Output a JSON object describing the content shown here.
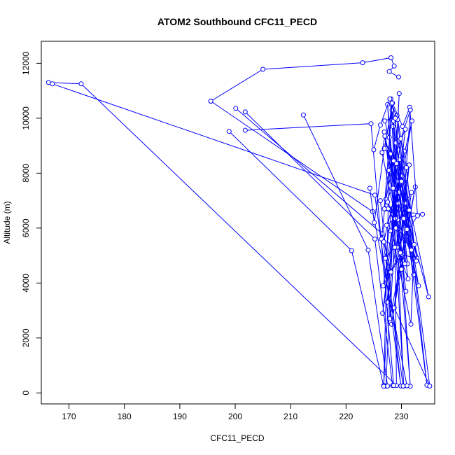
{
  "chart_data": {
    "type": "line",
    "title": "ATOM2 Southbound CFC11_PECD",
    "xlabel": "CFC11_PECD",
    "ylabel": "Altitude (m)",
    "xlim": [
      165,
      236
    ],
    "ylim": [
      -400,
      12800
    ],
    "x_ticks": [
      170,
      180,
      190,
      200,
      210,
      220,
      230
    ],
    "y_ticks": [
      0,
      2000,
      4000,
      6000,
      8000,
      10000,
      12000
    ],
    "marker": "open-circle",
    "grid": false,
    "legend": "none",
    "colors": {
      "series": "#0000ff",
      "axis": "#000000"
    },
    "series": [
      {
        "x": [
          227.2,
          229.6,
          226.8,
          228.1,
          230.4,
          227.5,
          231.6,
          228.3,
          234.6,
          229.2,
          227.0,
          232.8,
          228.5,
          231.1,
          226.9,
          230.0,
          227.8,
          232.2,
          229.0,
          233.1,
          227.3,
          230.8,
          228.0,
          234.9,
          229.7,
          227.4,
          231.4,
          228.7,
          235.1,
          230.2,
          226.6,
          229.4,
          227.9,
          232.5,
          228.2,
          231.8,
          230.6,
          227.1,
          233.8,
          229.3
        ],
        "y": [
          250,
          10900,
          270,
          10700,
          250,
          10500,
          240,
          10300,
          280,
          10100,
          9900,
          4900,
          9700,
          4700,
          9500,
          4500,
          9300,
          4300,
          9100,
          3900,
          8900,
          3700,
          8700,
          3500,
          8500,
          3300,
          8300,
          3100,
          250,
          7900,
          2900,
          7700,
          2700,
          7500,
          2500,
          7300,
          6900,
          6700,
          6500,
          6300
        ]
      },
      {
        "x": [
          166.3,
          172.2,
          229.1,
          228.6
        ],
        "y": [
          11300,
          11250,
          270,
          9900
        ]
      },
      {
        "x": [
          167.0,
          225.2,
          229.9,
          226.2
        ],
        "y": [
          11250,
          7200,
          250,
          7000
        ]
      },
      {
        "x": [
          195.6,
          205.0,
          223.0,
          228.1,
          228.7,
          227.8,
          229.5
        ],
        "y": [
          10620,
          11780,
          12020,
          12200,
          11900,
          11700,
          11500
        ]
      },
      {
        "x": [
          195.6,
          224.8,
          231.0
        ],
        "y": [
          10620,
          6600,
          260
        ]
      },
      {
        "x": [
          200.1,
          226.5,
          230.3
        ],
        "y": [
          10360,
          5800,
          250
        ]
      },
      {
        "x": [
          201.8,
          225.2,
          228.4
        ],
        "y": [
          10230,
          5600,
          270
        ]
      },
      {
        "x": [
          198.9,
          221.0,
          226.8
        ],
        "y": [
          9520,
          5180,
          240
        ]
      },
      {
        "x": [
          201.8,
          224.5,
          228.6
        ],
        "y": [
          9560,
          9800,
          270
        ]
      },
      {
        "x": [
          212.3,
          224.0,
          227.5
        ],
        "y": [
          10120,
          5200,
          250
        ]
      },
      {
        "x": [
          224.3,
          225.1,
          226.9,
          228.4,
          230.2,
          231.5,
          232.9,
          229.2,
          226.4,
          227.7,
          230.7,
          228.9,
          227.3,
          229.6,
          231.9,
          226.8,
          228.1,
          230.1,
          232.4,
          227.6,
          229.4,
          231.2,
          228.0,
          230.5,
          226.7,
          229.8,
          231.6,
          228.6,
          227.2,
          229.0
        ],
        "y": [
          7450,
          6200,
          8900,
          10550,
          9700,
          10400,
          6450,
          5300,
          5600,
          8100,
          9600,
          6350,
          6100,
          7300,
          9900,
          5500,
          4400,
          5050,
          4900,
          6700,
          6900,
          4150,
          5900,
          8800,
          3900,
          5100,
          10300,
          8450,
          7050,
          6000
        ]
      },
      {
        "x": [
          225.0,
          226.2,
          227.9,
          229.3,
          230.9,
          232.3,
          231.7,
          228.8,
          227.1,
          229.9,
          231.4,
          228.3,
          226.9,
          230.4,
          232.7,
          227.5,
          229.1,
          231.0,
          228.5,
          230.0,
          231.8,
          227.0,
          226.5,
          230.6,
          228.9
        ],
        "y": [
          8850,
          9750,
          10700,
          9950,
          8200,
          5400,
          2500,
          5300,
          4900,
          9250,
          6650,
          10550,
          6700,
          6350,
          4800,
          6950,
          8350,
          5950,
          7450,
          7700,
          5200,
          9350,
          8750,
          4700,
          10000
        ]
      }
    ]
  }
}
